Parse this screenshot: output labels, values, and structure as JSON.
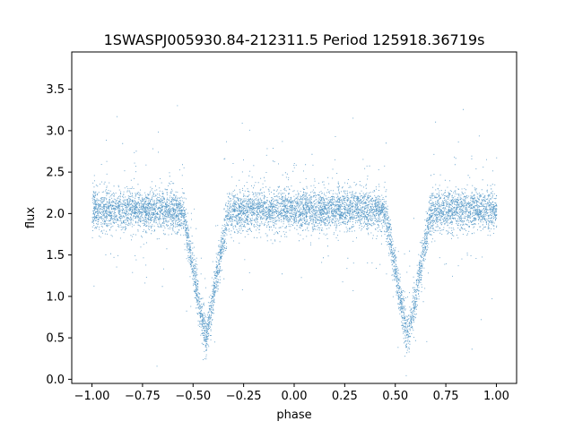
{
  "chart_data": {
    "type": "scatter",
    "title": "1SWASPJ005930.84-212311.5 Period 125918.36719s",
    "xlabel": "phase",
    "ylabel": "flux",
    "xlim": [
      -1.1,
      1.1
    ],
    "ylim": [
      -0.05,
      3.95
    ],
    "xticks": [
      -1.0,
      -0.75,
      -0.5,
      -0.25,
      0.0,
      0.25,
      0.5,
      0.75,
      1.0
    ],
    "xtick_labels": [
      "−1.00",
      "−0.75",
      "−0.50",
      "−0.25",
      "0.00",
      "0.25",
      "0.50",
      "0.75",
      "1.00"
    ],
    "yticks": [
      0.0,
      0.5,
      1.0,
      1.5,
      2.0,
      2.5,
      3.0,
      3.5
    ],
    "ytick_labels": [
      "0.0",
      "0.5",
      "1.0",
      "1.5",
      "2.0",
      "2.5",
      "3.0",
      "3.5"
    ],
    "grid": false,
    "legend": "none",
    "point_color": "#1f77b4",
    "series": [
      {
        "x_range": [
          -1.0,
          1.0
        ],
        "baseline_flux": 2.05,
        "primary_eclipse_phase": -0.44,
        "secondary_eclipse_phase": 0.56,
        "eclipse_min_flux": 0.5,
        "eclipse_half_width": 0.11
      }
    ]
  }
}
